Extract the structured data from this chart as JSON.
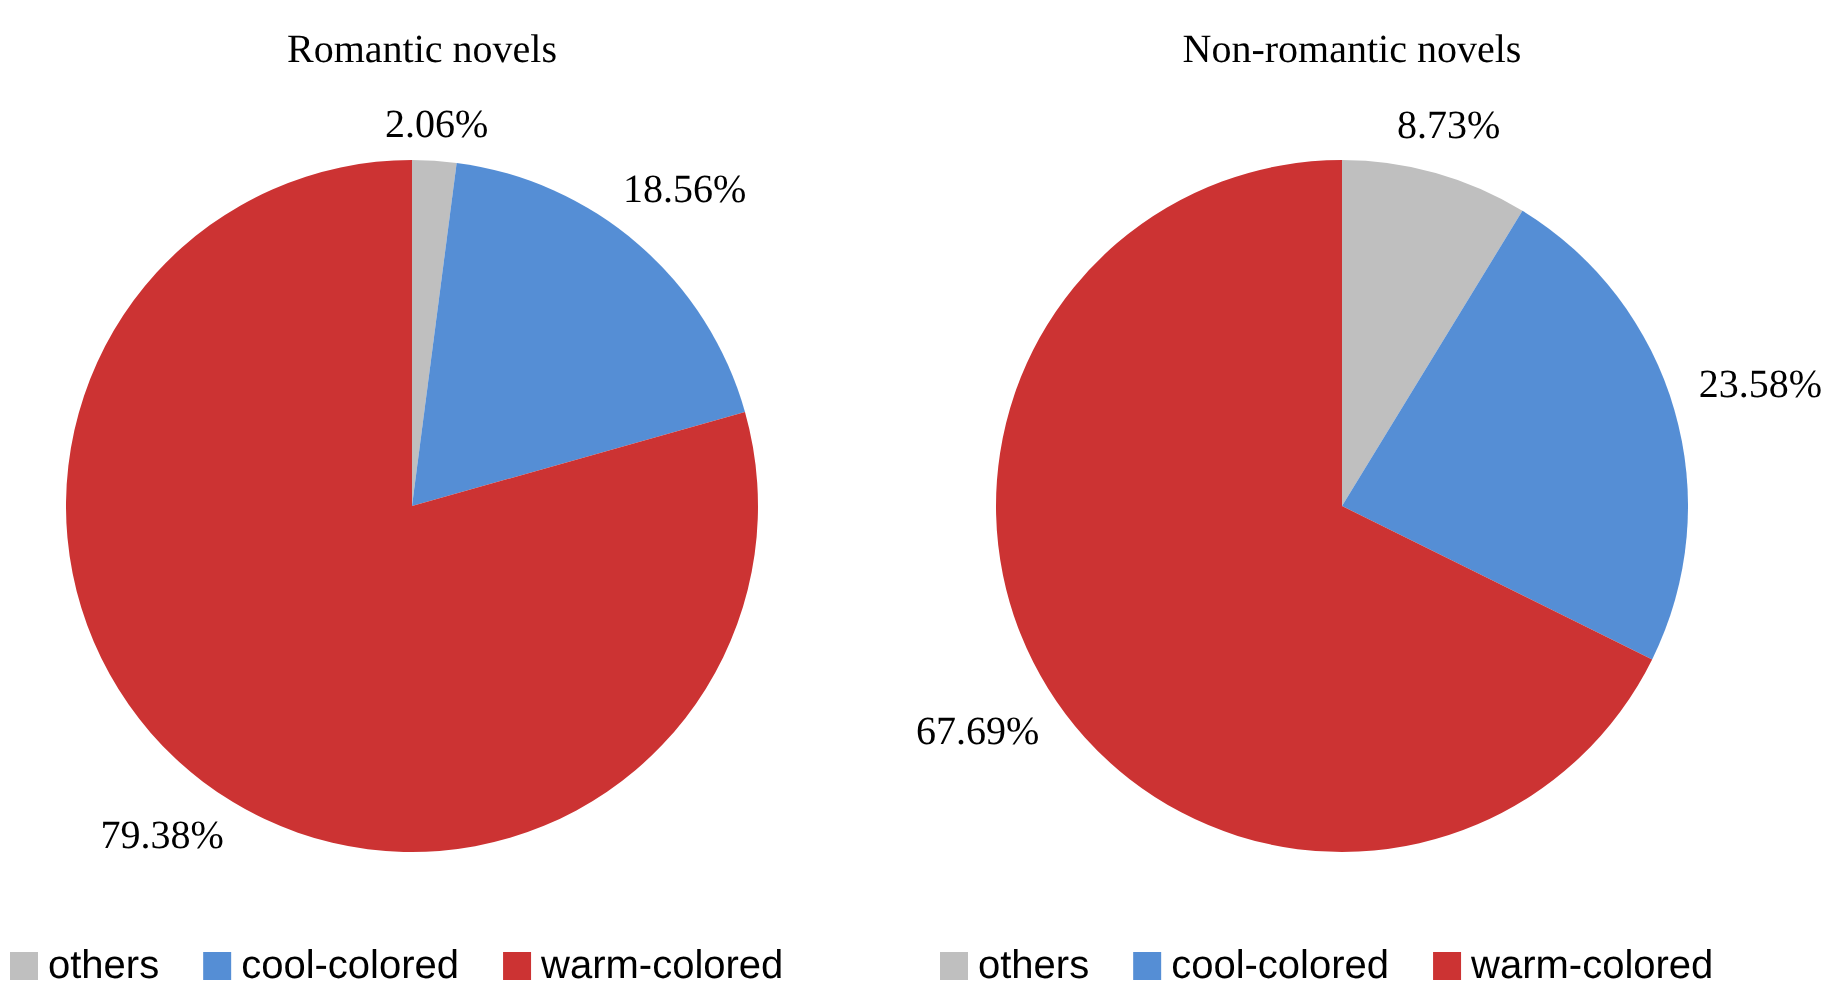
{
  "chart_data": [
    {
      "type": "pie",
      "title": "Romantic novels",
      "categories": [
        "others",
        "cool-colored",
        "warm-colored"
      ],
      "values": [
        2.06,
        18.56,
        79.38
      ],
      "colors": [
        "#bfbfbf",
        "#558ed5",
        "#cc3333"
      ],
      "value_labels": [
        "2.06%",
        "18.56%",
        "79.38%"
      ],
      "legend": "bottom"
    },
    {
      "type": "pie",
      "title": "Non-romantic novels",
      "categories": [
        "others",
        "cool-colored",
        "warm-colored"
      ],
      "values": [
        8.73,
        23.58,
        67.69
      ],
      "colors": [
        "#bfbfbf",
        "#558ed5",
        "#cc3333"
      ],
      "value_labels": [
        "8.73%",
        "23.58%",
        "67.69%"
      ],
      "legend": "bottom"
    }
  ]
}
